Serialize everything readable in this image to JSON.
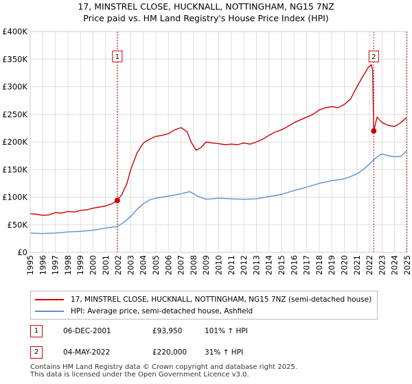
{
  "title_line1": "17, MINSTREL CLOSE, HUCKNALL, NOTTINGHAM, NG15 7NZ",
  "title_line2": "Price paid vs. HM Land Registry's House Price Index (HPI)",
  "chart_data": {
    "type": "line",
    "title": "17, MINSTREL CLOSE, HUCKNALL, NOTTINGHAM, NG15 7NZ — Price paid vs. HM Land Registry's House Price Index (HPI)",
    "xlabel": "",
    "ylabel": "",
    "xlim": [
      1995,
      2025
    ],
    "ylim": [
      0,
      400000
    ],
    "grid": true,
    "y_ticks": [
      {
        "value": 0,
        "label": "£0"
      },
      {
        "value": 50000,
        "label": "£50K"
      },
      {
        "value": 100000,
        "label": "£100K"
      },
      {
        "value": 150000,
        "label": "£150K"
      },
      {
        "value": 200000,
        "label": "£200K"
      },
      {
        "value": 250000,
        "label": "£250K"
      },
      {
        "value": 300000,
        "label": "£300K"
      },
      {
        "value": 350000,
        "label": "£350K"
      },
      {
        "value": 400000,
        "label": "£400K"
      }
    ],
    "x_ticks": [
      "1995",
      "1996",
      "1997",
      "1998",
      "1999",
      "2000",
      "2001",
      "2002",
      "2003",
      "2004",
      "2005",
      "2006",
      "2007",
      "2008",
      "2009",
      "2010",
      "2011",
      "2012",
      "2013",
      "2014",
      "2015",
      "2016",
      "2017",
      "2018",
      "2019",
      "2020",
      "2021",
      "2022",
      "2023",
      "2024",
      "2025"
    ],
    "series": [
      {
        "name": "17, MINSTREL CLOSE, HUCKNALL, NOTTINGHAM, NG15 7NZ (semi-detached house)",
        "color": "#cc0000",
        "x": [
          1995.0,
          1995.5,
          1996.0,
          1996.5,
          1997.0,
          1997.5,
          1998.0,
          1998.5,
          1999.0,
          1999.5,
          2000.0,
          2000.5,
          2001.0,
          2001.5,
          2001.93,
          2002.3,
          2002.7,
          2003.0,
          2003.5,
          2004.0,
          2004.5,
          2005.0,
          2005.5,
          2006.0,
          2006.5,
          2007.0,
          2007.5,
          2007.8,
          2008.2,
          2008.6,
          2009.0,
          2009.5,
          2010.0,
          2010.5,
          2011.0,
          2011.5,
          2012.0,
          2012.5,
          2013.0,
          2013.5,
          2014.0,
          2014.5,
          2015.0,
          2015.5,
          2016.0,
          2016.5,
          2017.0,
          2017.5,
          2018.0,
          2018.5,
          2019.0,
          2019.5,
          2020.0,
          2020.5,
          2021.0,
          2021.5,
          2021.9,
          2022.15,
          2022.25,
          2022.34,
          2022.6,
          2023.0,
          2023.5,
          2024.0,
          2024.5,
          2025.0
        ],
        "y": [
          70000,
          69000,
          67000,
          68000,
          72000,
          71000,
          74000,
          73000,
          76000,
          77000,
          80000,
          82000,
          84000,
          88000,
          93950,
          105000,
          125000,
          150000,
          180000,
          198000,
          205000,
          210000,
          212000,
          215000,
          222000,
          226000,
          218000,
          200000,
          185000,
          190000,
          200000,
          198000,
          197000,
          195000,
          196000,
          195000,
          198000,
          196000,
          200000,
          205000,
          212000,
          218000,
          222000,
          228000,
          235000,
          240000,
          245000,
          250000,
          258000,
          262000,
          264000,
          262000,
          268000,
          278000,
          300000,
          320000,
          335000,
          340000,
          330000,
          220000,
          245000,
          235000,
          230000,
          228000,
          235000,
          245000
        ]
      },
      {
        "name": "HPI: Average price, semi-detached house, Ashfield",
        "color": "#5b8fd0",
        "x": [
          1995.0,
          1996.0,
          1997.0,
          1998.0,
          1999.0,
          2000.0,
          2001.0,
          2001.93,
          2002.5,
          2003.0,
          2003.5,
          2004.0,
          2004.5,
          2005.0,
          2006.0,
          2007.0,
          2007.7,
          2008.3,
          2009.0,
          2010.0,
          2011.0,
          2012.0,
          2013.0,
          2014.0,
          2015.0,
          2016.0,
          2017.0,
          2018.0,
          2019.0,
          2020.0,
          2021.0,
          2021.5,
          2022.0,
          2022.34,
          2022.8,
          2023.0,
          2023.5,
          2024.0,
          2024.5,
          2025.0
        ],
        "y": [
          35000,
          34000,
          35000,
          37000,
          38000,
          40000,
          44000,
          47000,
          55000,
          65000,
          78000,
          88000,
          95000,
          98000,
          102000,
          106000,
          110000,
          102000,
          96000,
          98000,
          97000,
          96000,
          97000,
          101000,
          105000,
          112000,
          118000,
          125000,
          130000,
          133000,
          142000,
          150000,
          160000,
          168000,
          176000,
          178000,
          175000,
          173000,
          174000,
          185000
        ]
      }
    ],
    "transactions": [
      {
        "marker": "1",
        "date": "06-DEC-2001",
        "year": 2001.93,
        "price": 93950,
        "price_label": "£93,950",
        "hpi_label": "101% ↑ HPI"
      },
      {
        "marker": "2",
        "date": "04-MAY-2022",
        "year": 2022.34,
        "price": 220000,
        "price_label": "£220,000",
        "hpi_label": "31% ↑ HPI"
      }
    ],
    "marker_label_value": 355000
  },
  "legend": {
    "property_label": "17, MINSTREL CLOSE, HUCKNALL, NOTTINGHAM, NG15 7NZ (semi-detached house)",
    "hpi_label": "HPI: Average price, semi-detached house, Ashfield"
  },
  "colors": {
    "property": "#cc0000",
    "hpi": "#5b8fd0",
    "grid": "#dddddd",
    "plot_bg": "#ffffff"
  },
  "footer": {
    "line1": "Contains HM Land Registry data © Crown copyright and database right 2025.",
    "line2": "This data is licensed under the Open Government Licence v3.0."
  }
}
